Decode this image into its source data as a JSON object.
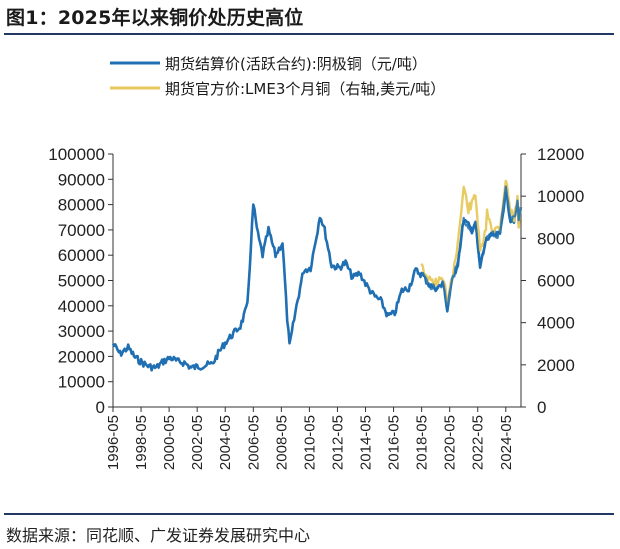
{
  "title": "图1：2025年以来铜价处历史高位",
  "source": "数据来源：同花顺、广发证券发展研究中心",
  "colors": {
    "series1": "#1f6fb2",
    "series2": "#e8c85c",
    "rule": "#1f3864"
  },
  "chart_data": {
    "type": "line",
    "title": "图1：2025年以来铜价处历史高位",
    "legend_placement": "top",
    "grid": false,
    "x_ticks": [
      "1996-05",
      "1998-05",
      "2000-05",
      "2002-05",
      "2004-05",
      "2006-05",
      "2008-05",
      "2010-05",
      "2012-05",
      "2014-05",
      "2016-05",
      "2018-05",
      "2020-05",
      "2022-05",
      "2024-05"
    ],
    "x_range": [
      "1996-05",
      "2025-06"
    ],
    "y_left": {
      "min": 0,
      "max": 100000,
      "step": 10000,
      "ticks": [
        "0",
        "10000",
        "20000",
        "30000",
        "40000",
        "50000",
        "60000",
        "70000",
        "80000",
        "90000",
        "100000"
      ]
    },
    "y_right": {
      "min": 0,
      "max": 12000,
      "step": 2000,
      "ticks": [
        "0",
        "2000",
        "4000",
        "6000",
        "8000",
        "10000",
        "12000"
      ]
    },
    "series": [
      {
        "name": "期货结算价(活跃合约):阴极铜（元/吨）",
        "axis": "left",
        "points": [
          [
            "1996-05",
            25000
          ],
          [
            "1996-11",
            21000
          ],
          [
            "1997-06",
            23500
          ],
          [
            "1997-12",
            19500
          ],
          [
            "1998-06",
            17500
          ],
          [
            "1998-12",
            16000
          ],
          [
            "1999-06",
            15500
          ],
          [
            "1999-12",
            18000
          ],
          [
            "2000-06",
            19500
          ],
          [
            "2000-12",
            18000
          ],
          [
            "2001-06",
            17500
          ],
          [
            "2001-12",
            15500
          ],
          [
            "2002-06",
            16000
          ],
          [
            "2002-12",
            16500
          ],
          [
            "2003-06",
            17000
          ],
          [
            "2003-12",
            22000
          ],
          [
            "2004-06",
            26000
          ],
          [
            "2004-12",
            29000
          ],
          [
            "2005-06",
            32000
          ],
          [
            "2005-12",
            40000
          ],
          [
            "2006-05",
            80000
          ],
          [
            "2006-09",
            68000
          ],
          [
            "2007-01",
            60000
          ],
          [
            "2007-06",
            70000
          ],
          [
            "2007-12",
            60000
          ],
          [
            "2008-06",
            65000
          ],
          [
            "2008-10",
            35000
          ],
          [
            "2008-12",
            24000
          ],
          [
            "2009-06",
            40000
          ],
          [
            "2009-12",
            54000
          ],
          [
            "2010-06",
            55000
          ],
          [
            "2010-12",
            70000
          ],
          [
            "2011-02",
            76000
          ],
          [
            "2011-06",
            70000
          ],
          [
            "2011-12",
            56000
          ],
          [
            "2012-06",
            55000
          ],
          [
            "2012-12",
            57000
          ],
          [
            "2013-06",
            51000
          ],
          [
            "2013-12",
            53000
          ],
          [
            "2014-06",
            48000
          ],
          [
            "2014-12",
            44000
          ],
          [
            "2015-06",
            42000
          ],
          [
            "2015-12",
            36000
          ],
          [
            "2016-06",
            37000
          ],
          [
            "2016-12",
            46000
          ],
          [
            "2017-06",
            47000
          ],
          [
            "2017-12",
            54000
          ],
          [
            "2018-06",
            52000
          ],
          [
            "2018-12",
            48000
          ],
          [
            "2019-06",
            47000
          ],
          [
            "2019-12",
            49000
          ],
          [
            "2020-03",
            38000
          ],
          [
            "2020-06",
            48000
          ],
          [
            "2020-12",
            57000
          ],
          [
            "2021-05",
            74000
          ],
          [
            "2021-12",
            70000
          ],
          [
            "2022-03",
            73000
          ],
          [
            "2022-07",
            55000
          ],
          [
            "2022-12",
            66000
          ],
          [
            "2023-06",
            68000
          ],
          [
            "2023-12",
            68000
          ],
          [
            "2024-05",
            86000
          ],
          [
            "2024-09",
            74000
          ],
          [
            "2024-12",
            74000
          ],
          [
            "2025-03",
            81000
          ],
          [
            "2025-04",
            73000
          ],
          [
            "2025-06",
            79000
          ]
        ]
      },
      {
        "name": "期货官方价:LME3个月铜（右轴,美元/吨）",
        "axis": "right",
        "points": [
          [
            "2018-05",
            6900
          ],
          [
            "2018-09",
            6100
          ],
          [
            "2018-12",
            6000
          ],
          [
            "2019-06",
            5900
          ],
          [
            "2019-12",
            6100
          ],
          [
            "2020-03",
            4700
          ],
          [
            "2020-06",
            5800
          ],
          [
            "2020-12",
            7800
          ],
          [
            "2021-05",
            10400
          ],
          [
            "2021-09",
            9400
          ],
          [
            "2021-12",
            9600
          ],
          [
            "2022-03",
            10200
          ],
          [
            "2022-07",
            7300
          ],
          [
            "2022-12",
            8400
          ],
          [
            "2023-01",
            9200
          ],
          [
            "2023-06",
            8400
          ],
          [
            "2023-12",
            8500
          ],
          [
            "2024-05",
            10800
          ],
          [
            "2024-09",
            9300
          ],
          [
            "2024-12",
            9000
          ],
          [
            "2025-03",
            9800
          ],
          [
            "2025-04",
            8700
          ],
          [
            "2025-06",
            9500
          ]
        ]
      }
    ]
  }
}
